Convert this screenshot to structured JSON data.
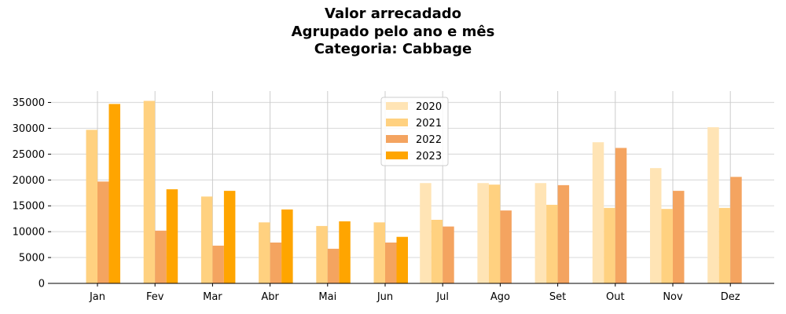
{
  "chart_data": {
    "type": "bar",
    "title_lines": [
      "Valor arrecadado",
      "Agrupado pelo ano e mês",
      "Categoria: Cabbage"
    ],
    "xlabel": "",
    "ylabel": "",
    "categories": [
      "Jan",
      "Fev",
      "Mar",
      "Abr",
      "Mai",
      "Jun",
      "Jul",
      "Ago",
      "Set",
      "Out",
      "Nov",
      "Dez"
    ],
    "ylim": [
      0,
      37200
    ],
    "yticks": [
      0,
      5000,
      10000,
      15000,
      20000,
      25000,
      30000,
      35000
    ],
    "grid": true,
    "legend_position": "top-center",
    "series": [
      {
        "name": "2020",
        "color": "#FFE4B5",
        "values": [
          null,
          null,
          null,
          null,
          null,
          null,
          19400,
          19400,
          19400,
          27300,
          22300,
          30200
        ]
      },
      {
        "name": "2021",
        "color": "#FFD180",
        "values": [
          29700,
          35300,
          16800,
          11800,
          11100,
          11800,
          12300,
          19100,
          15200,
          14600,
          14400,
          14600
        ]
      },
      {
        "name": "2022",
        "color": "#F4A460",
        "values": [
          19700,
          10200,
          7300,
          7900,
          6700,
          7900,
          11000,
          14100,
          19000,
          26200,
          17900,
          20600
        ]
      },
      {
        "name": "2023",
        "color": "#FFA500",
        "values": [
          34700,
          18200,
          17900,
          14300,
          12000,
          9000,
          null,
          null,
          null,
          null,
          null,
          null
        ]
      }
    ]
  }
}
